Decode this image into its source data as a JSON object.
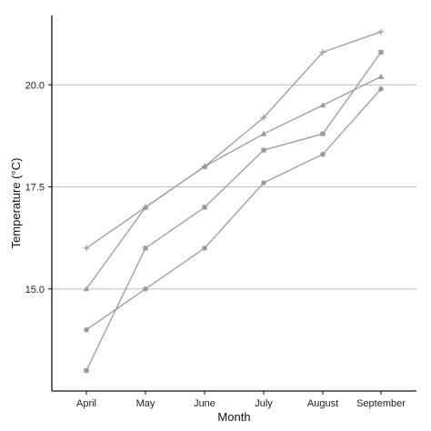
{
  "chart_data": {
    "type": "line",
    "xlabel": "Month",
    "ylabel": "Temperature (°C)",
    "categories": [
      "April",
      "May",
      "June",
      "July",
      "August",
      "September"
    ],
    "ylim": [
      12.5,
      21.7
    ],
    "yticks": [
      15.0,
      17.5,
      20.0
    ],
    "ytick_labels": [
      "15.0",
      "17.5",
      "20.0"
    ],
    "grid": "horizontal at y ticks",
    "legend": "none",
    "line_color": "#9a9a9a",
    "series": [
      {
        "marker": "plus",
        "values": [
          16.0,
          17.0,
          18.0,
          19.2,
          20.8,
          21.3
        ]
      },
      {
        "marker": "triangle",
        "values": [
          15.0,
          17.0,
          18.0,
          18.8,
          19.5,
          20.2
        ]
      },
      {
        "marker": "square",
        "values": [
          13.0,
          16.0,
          17.0,
          18.4,
          18.8,
          20.8
        ]
      },
      {
        "marker": "circle",
        "values": [
          14.0,
          15.0,
          16.0,
          17.6,
          18.3,
          19.9
        ]
      }
    ]
  }
}
